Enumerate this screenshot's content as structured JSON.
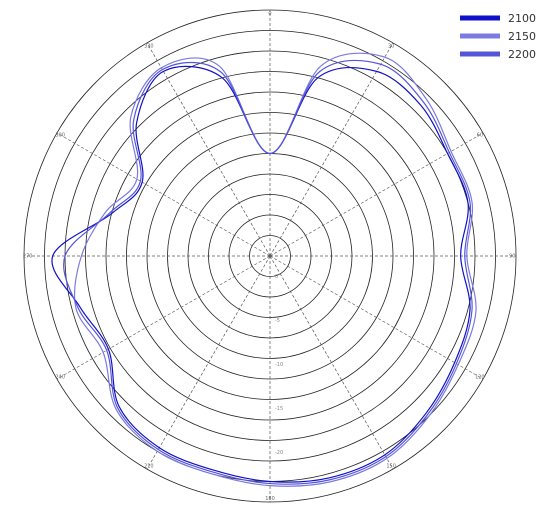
{
  "chart_data": {
    "type": "polar-line",
    "title": "",
    "angle_ticks": [
      "0",
      "30",
      "60",
      "90",
      "120",
      "150",
      "180",
      "210",
      "240",
      "270",
      "300",
      "330"
    ],
    "radial_ticks": [
      "0",
      "-5",
      "-10",
      "-15",
      "-20"
    ],
    "r_range": [
      0,
      12
    ],
    "legend_position": "top-right",
    "series": [
      {
        "name": "2100",
        "color": "#1010c8",
        "theta": [
          0,
          15,
          30,
          45,
          60,
          75,
          90,
          105,
          120,
          135,
          150,
          165,
          180,
          195,
          210,
          225,
          240,
          255,
          270,
          285,
          300,
          315,
          330,
          345
        ],
        "r": [
          5.0,
          9.0,
          10.4,
          10.4,
          10.0,
          10.0,
          9.3,
          10.1,
          10.4,
          10.8,
          11.2,
          11.2,
          11.0,
          10.8,
          10.8,
          10.4,
          9.1,
          9.6,
          10.6,
          8.0,
          7.2,
          9.2,
          10.4,
          9.0
        ]
      },
      {
        "name": "2150",
        "color": "#7a7ae0",
        "theta": [
          0,
          15,
          30,
          45,
          60,
          75,
          90,
          105,
          120,
          135,
          150,
          165,
          180,
          195,
          210,
          225,
          240,
          255,
          270,
          285,
          300,
          315,
          330,
          345
        ],
        "r": [
          5.0,
          9.6,
          11.2,
          10.8,
          10.2,
          10.2,
          9.6,
          10.4,
          10.6,
          11.0,
          11.4,
          11.4,
          11.2,
          11.0,
          11.0,
          10.6,
          9.4,
          9.8,
          9.2,
          8.3,
          7.5,
          9.6,
          10.6,
          9.6
        ]
      },
      {
        "name": "2200",
        "color": "#5555d8",
        "theta": [
          0,
          15,
          30,
          45,
          60,
          75,
          90,
          105,
          120,
          135,
          150,
          165,
          180,
          195,
          210,
          225,
          240,
          255,
          270,
          285,
          300,
          315,
          330,
          345
        ],
        "r": [
          5.0,
          9.3,
          10.8,
          10.6,
          10.1,
          10.1,
          9.5,
          10.2,
          10.5,
          10.9,
          11.3,
          11.3,
          11.1,
          10.9,
          10.9,
          10.5,
          9.2,
          9.7,
          10.0,
          8.1,
          7.3,
          9.4,
          10.5,
          9.3
        ]
      }
    ]
  }
}
